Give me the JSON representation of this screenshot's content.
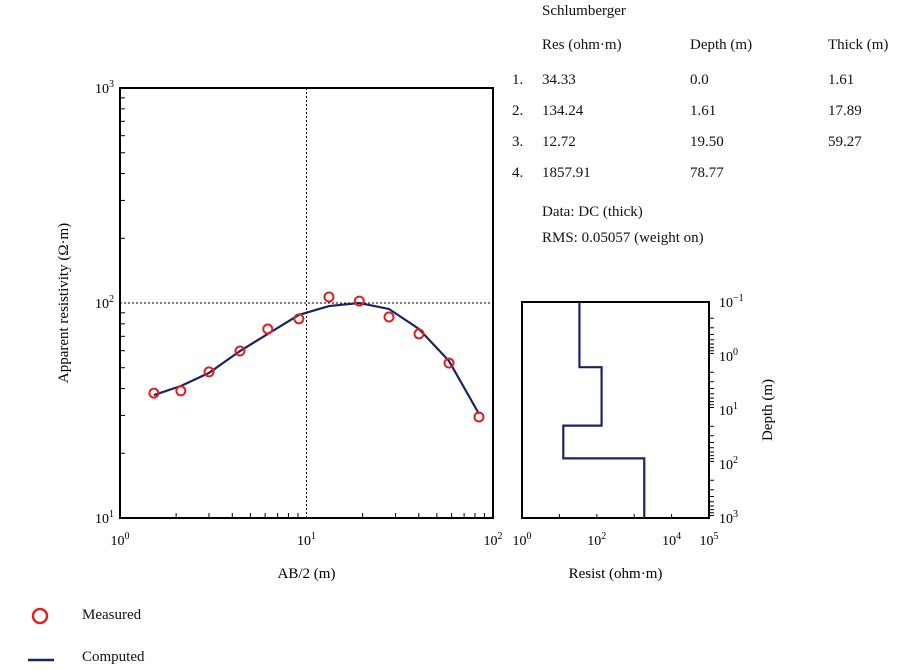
{
  "chart_data": [
    {
      "type": "scatter",
      "xlabel": "AB/2 (m)",
      "ylabel": "Apparent resistivity (Ω·m)",
      "xscale": "log",
      "yscale": "log",
      "xlim": [
        1,
        100
      ],
      "ylim": [
        10,
        1000
      ],
      "xticks": [
        {
          "b": "10",
          "e": "0",
          "v": 1
        },
        {
          "b": "10",
          "e": "1",
          "v": 10
        },
        {
          "b": "10",
          "e": "2",
          "v": 100
        }
      ],
      "yticks": [
        {
          "b": "10",
          "e": "1",
          "v": 10
        },
        {
          "b": "10",
          "e": "2",
          "v": 100
        },
        {
          "b": "10",
          "e": "3",
          "v": 1000
        }
      ],
      "reference_lines": {
        "x": 10,
        "y": 100
      },
      "series": [
        {
          "name": "Measured",
          "style": "open-circle",
          "color": "#e02020",
          "x": [
            1.52,
            2.12,
            3.0,
            4.4,
            6.2,
            9.1,
            13.2,
            19.2,
            27.7,
            40.1,
            58.1,
            84.1
          ],
          "y": [
            38.1,
            39.0,
            47.8,
            59.8,
            75.7,
            84.4,
            106.6,
            102,
            86.1,
            71.8,
            52.6,
            29.5
          ]
        },
        {
          "name": "Computed",
          "style": "line",
          "color": "#1a2460",
          "x": [
            1.52,
            2.12,
            3.0,
            4.4,
            6.2,
            9.1,
            13.2,
            19.2,
            27.7,
            40.1,
            58.1,
            84.1
          ],
          "y": [
            37.3,
            41.1,
            47.3,
            59.8,
            71.8,
            88,
            96.8,
            100,
            93.8,
            75.7,
            53.7,
            30.5
          ]
        }
      ]
    },
    {
      "type": "line",
      "xlabel": "Resist (ohm·m)",
      "ylabel": "Depth (m)",
      "xscale": "log",
      "yscale": "log",
      "xlim": [
        1,
        100000
      ],
      "ylim": [
        0.1,
        1000
      ],
      "y_inverted": true,
      "xticks": [
        {
          "b": "10",
          "e": "0",
          "v": 1
        },
        {
          "b": "10",
          "e": "2",
          "v": 100
        },
        {
          "b": "10",
          "e": "4",
          "v": 10000
        },
        {
          "b": "10",
          "e": "5",
          "v": 100000
        }
      ],
      "yticks": [
        {
          "b": "10",
          "e": "−1",
          "v": 0.1
        },
        {
          "b": "10",
          "e": "0",
          "v": 1
        },
        {
          "b": "10",
          "e": "1",
          "v": 10
        },
        {
          "b": "10",
          "e": "2",
          "v": 100
        },
        {
          "b": "10",
          "e": "3",
          "v": 1000
        }
      ],
      "color": "#1a2460"
    }
  ],
  "table": {
    "title": "Schlumberger",
    "headers": [
      "Res (ohm·m)",
      "Depth (m)",
      "Thick (m)"
    ],
    "rows": [
      {
        "n": "1.",
        "res": "34.33",
        "depth": "0.0",
        "thick": "1.61"
      },
      {
        "n": "2.",
        "res": "134.24",
        "depth": "1.61",
        "thick": "17.89"
      },
      {
        "n": "3.",
        "res": "12.72",
        "depth": "19.50",
        "thick": "59.27"
      },
      {
        "n": "4.",
        "res": "1857.91",
        "depth": "78.77",
        "thick": ""
      }
    ],
    "data_line": "Data: DC (thick)",
    "rms_line": "RMS: 0.05057 (weight on)"
  },
  "legend": {
    "measured": "Measured",
    "computed": "Computed"
  }
}
